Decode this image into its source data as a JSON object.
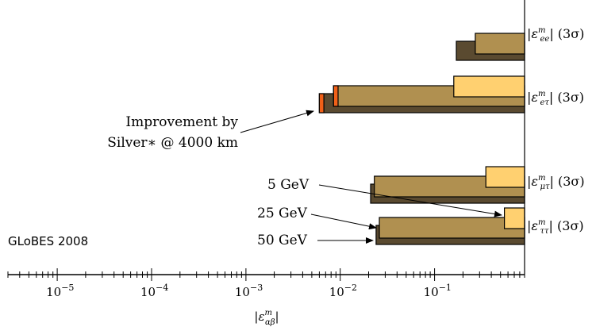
{
  "chart_data": {
    "type": "bar",
    "orientation": "horizontal",
    "xscale": "log",
    "xlim": [
      3e-06,
      0.9
    ],
    "xlabel": "|ε^m_{αβ}|",
    "xticks": [
      {
        "value": 1e-05,
        "base": "10",
        "exp": "−5"
      },
      {
        "value": 0.0001,
        "base": "10",
        "exp": "−4"
      },
      {
        "value": 0.001,
        "base": "10",
        "exp": "−3"
      },
      {
        "value": 0.01,
        "base": "10",
        "exp": "−2"
      },
      {
        "value": 0.1,
        "base": "10",
        "exp": "−1"
      }
    ],
    "series": [
      {
        "name": "5 GeV",
        "color": "#ffd070"
      },
      {
        "name": "25 GeV",
        "color": "#b09050"
      },
      {
        "name": "50 GeV",
        "color": "#5a4a30"
      }
    ],
    "improvement_color": "#f06018",
    "categories": [
      {
        "eps": "ε",
        "sup": "m",
        "sub": "ee",
        "suffix": "(3σ)",
        "values": [
          null,
          0.27,
          0.17
        ]
      },
      {
        "eps": "ε",
        "sup": "m",
        "sub": "eτ",
        "suffix": "(3σ)",
        "values": [
          0.16,
          0.0085,
          0.006
        ],
        "improved": [
          null,
          0.0095,
          0.0067
        ]
      },
      {
        "eps": "ε",
        "sup": "m",
        "sub": "μτ",
        "suffix": "(3σ)",
        "values": [
          0.35,
          0.023,
          0.021
        ]
      },
      {
        "eps": "ε",
        "sup": "m",
        "sub": "ττ",
        "suffix": "(3σ)",
        "values": [
          0.55,
          0.026,
          0.024
        ]
      }
    ],
    "annotations": {
      "improvement_line1": "Improvement by",
      "improvement_line2": "Silver∗ @ 4000 km",
      "energy_5": "5 GeV",
      "energy_25": "25 GeV",
      "energy_50": "50 GeV",
      "credit": "GLoBES 2008"
    }
  }
}
